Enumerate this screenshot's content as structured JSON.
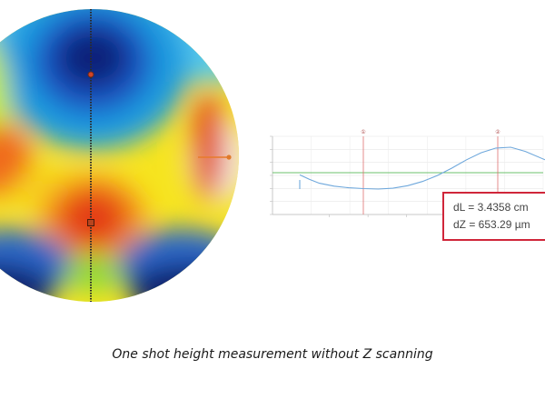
{
  "caption": "One shot height measurement without Z scanning",
  "measurements": {
    "dL": "dL = 3.4358 cm",
    "dZ": "dZ = 653.29 µm"
  },
  "colors": {
    "accent_red": "#d0263a",
    "profile_line": "#6fa8dc",
    "reference_line": "#6cc06c",
    "cursor_line": "#e07070"
  },
  "chart_data": {
    "type": "line",
    "title": "",
    "xlabel": "",
    "ylabel": "",
    "grid": true,
    "markers": [
      "①",
      "②"
    ],
    "series": [
      {
        "x": [
          0,
          0.04,
          0.08,
          0.14,
          0.2,
          0.26,
          0.32,
          0.38,
          0.44,
          0.5,
          0.56,
          0.62,
          0.68,
          0.74,
          0.8,
          0.86,
          0.92,
          1.0
        ],
        "values": [
          0.34,
          0.23,
          0.14,
          0.07,
          0.03,
          0.01,
          0.0,
          0.02,
          0.08,
          0.18,
          0.32,
          0.5,
          0.7,
          0.87,
          0.98,
          1.0,
          0.9,
          0.7
        ]
      }
    ]
  }
}
